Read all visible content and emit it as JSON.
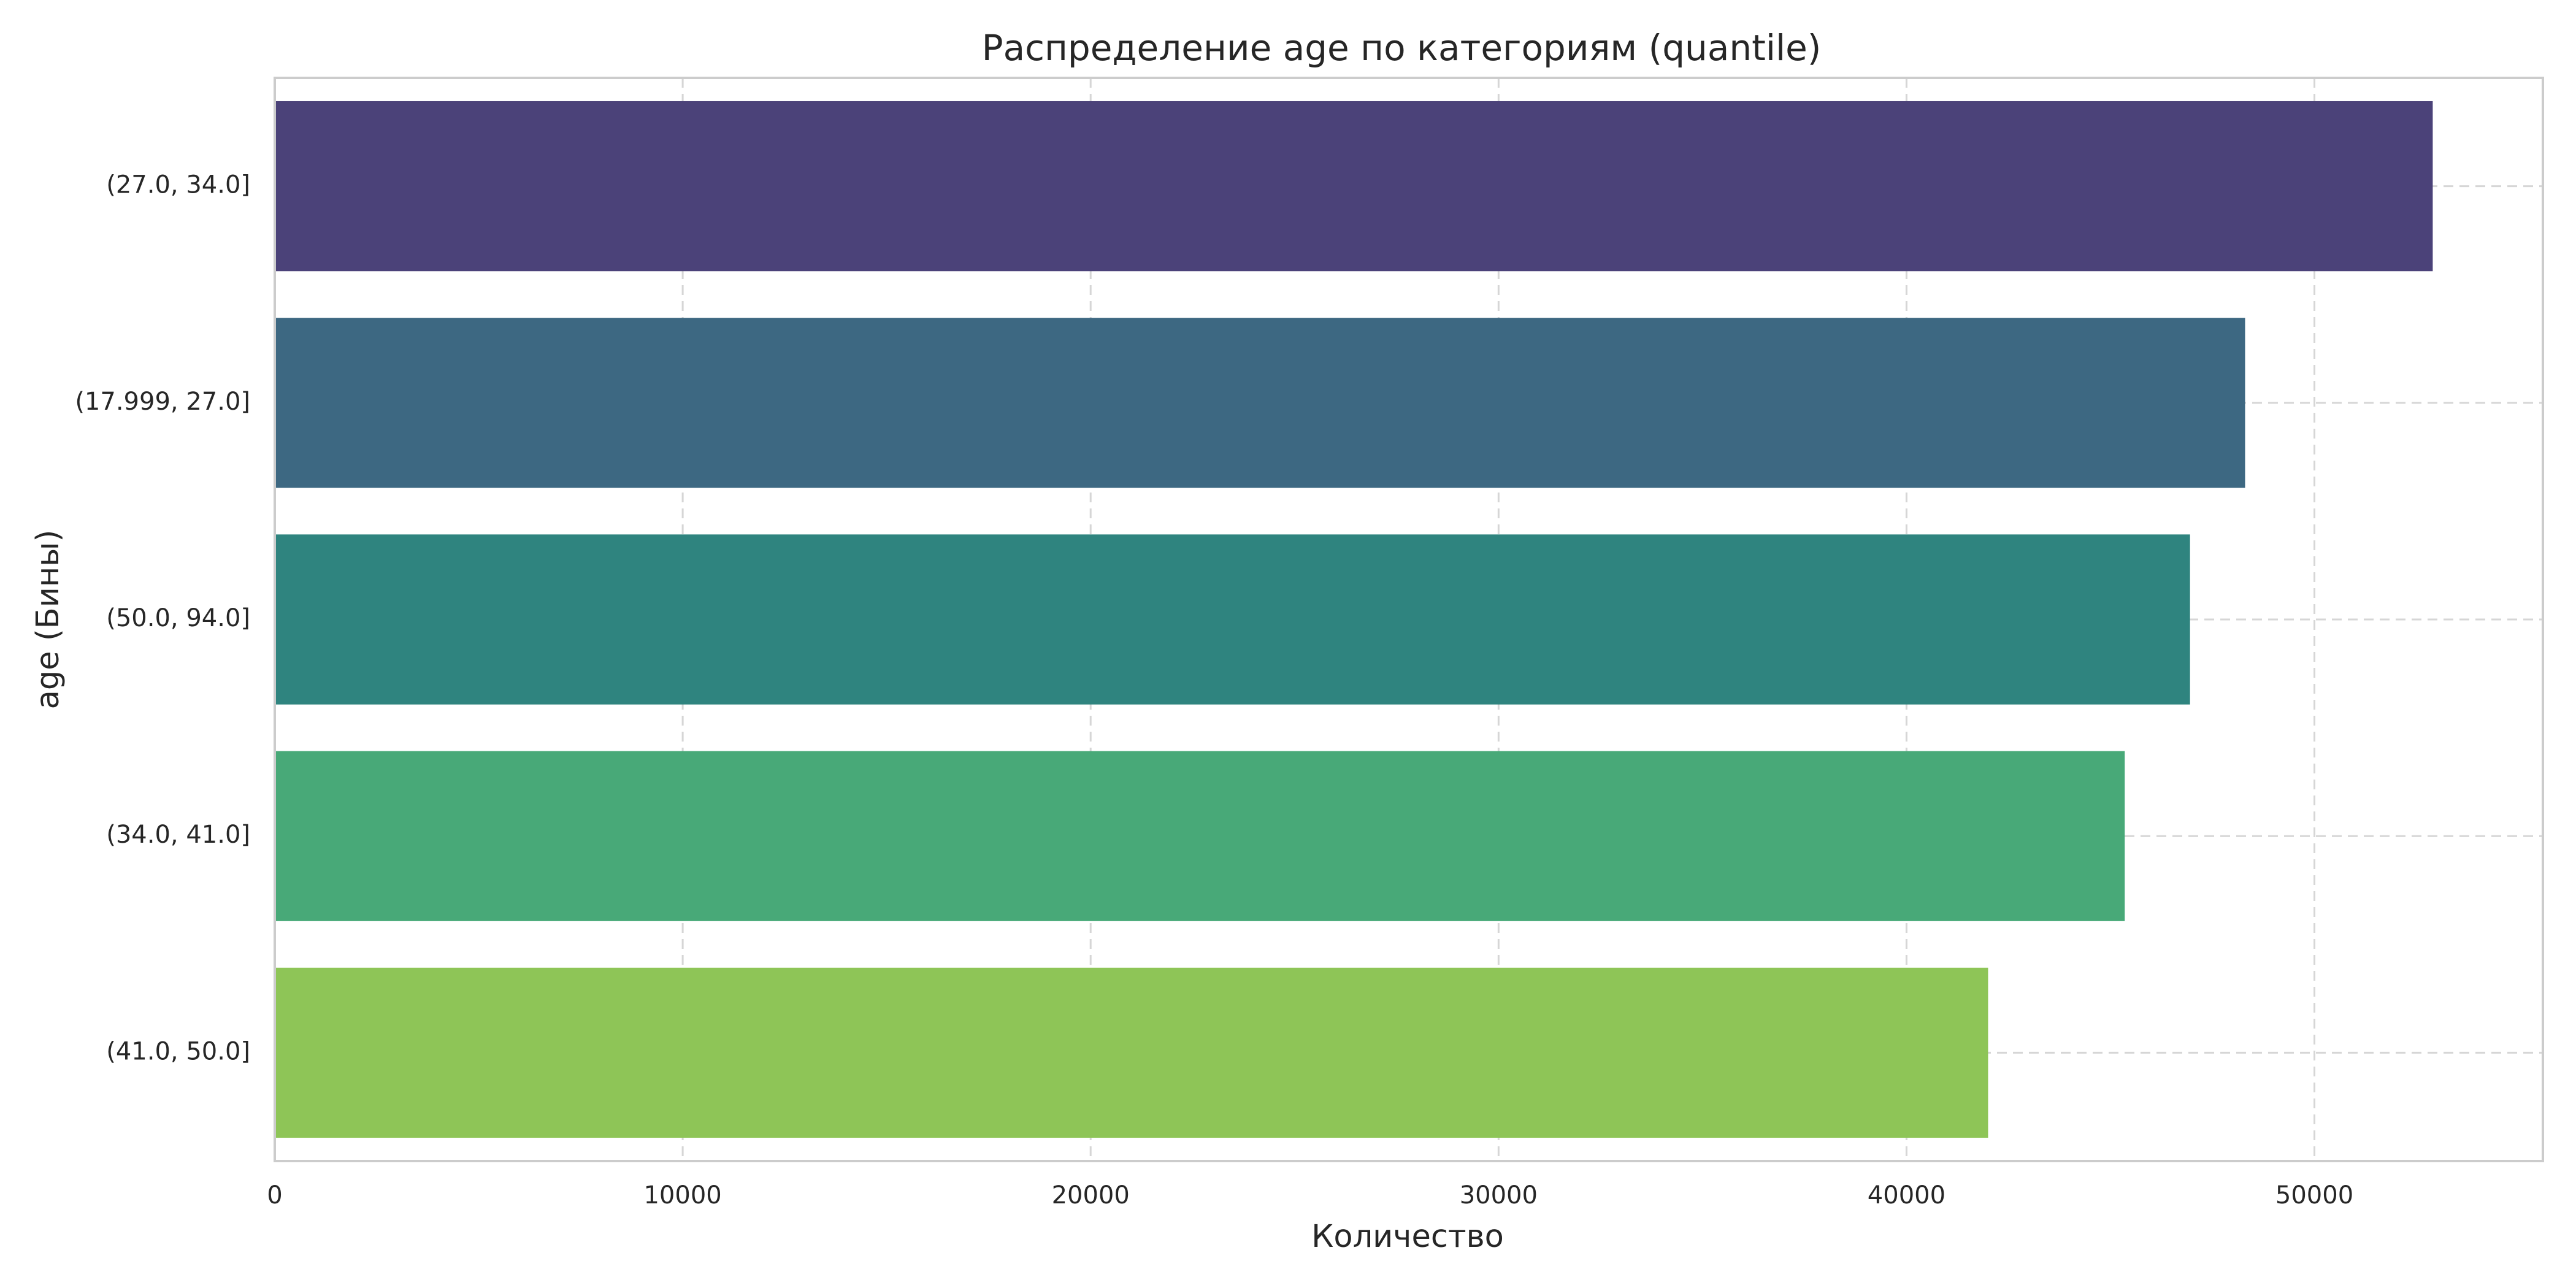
{
  "chart_data": {
    "type": "bar",
    "orientation": "horizontal",
    "title": "Распределение age по категориям (quantile)",
    "xlabel": "Количество",
    "ylabel": "age (Бины)",
    "categories": [
      "(27.0, 34.0]",
      "(17.999, 27.0]",
      "(50.0, 94.0]",
      "(34.0, 41.0]",
      "(41.0, 50.0]"
    ],
    "values": [
      52900,
      48300,
      46950,
      45350,
      42000
    ],
    "colors": [
      "#4b4279",
      "#3d6882",
      "#2f847f",
      "#48a978",
      "#8ec557"
    ],
    "xlim": [
      0,
      55600
    ],
    "xticks": [
      0,
      10000,
      20000,
      30000,
      40000,
      50000
    ],
    "grid": true,
    "legend": "none"
  }
}
